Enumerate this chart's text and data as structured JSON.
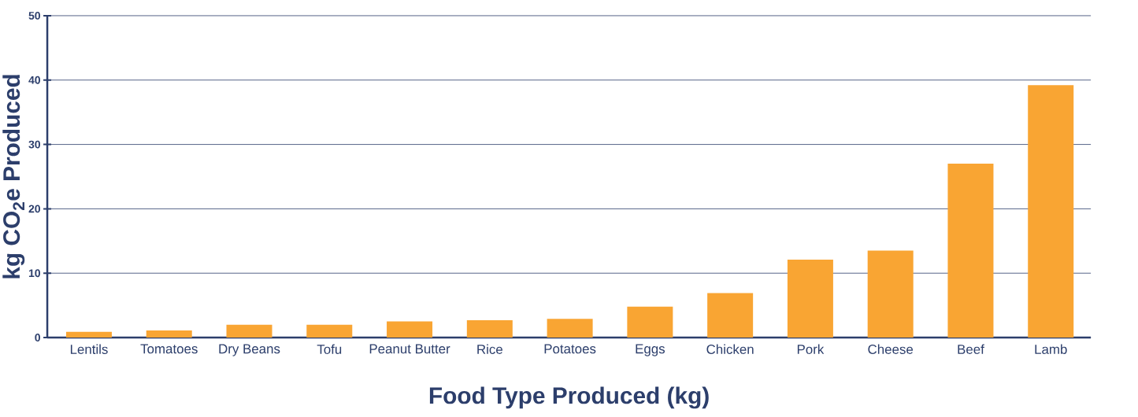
{
  "chart_data": {
    "type": "bar",
    "xlabel": "Food Type Produced (kg)",
    "ylabel": "kg CO$_{2}$e Produced",
    "categories": [
      "Lentils",
      "Tomatoes",
      "Dry Beans",
      "Tofu",
      "Peanut Butter",
      "Rice",
      "Potatoes",
      "Eggs",
      "Chicken",
      "Pork",
      "Cheese",
      "Beef",
      "Lamb"
    ],
    "values": [
      0.9,
      1.1,
      2.0,
      2.0,
      2.5,
      2.7,
      2.9,
      4.8,
      6.9,
      12.1,
      13.5,
      27.0,
      39.2
    ],
    "color": "#f9a533",
    "ylim": [
      0,
      50
    ],
    "yticks": [
      0,
      10,
      20,
      30,
      40,
      50
    ],
    "grid": "y"
  }
}
